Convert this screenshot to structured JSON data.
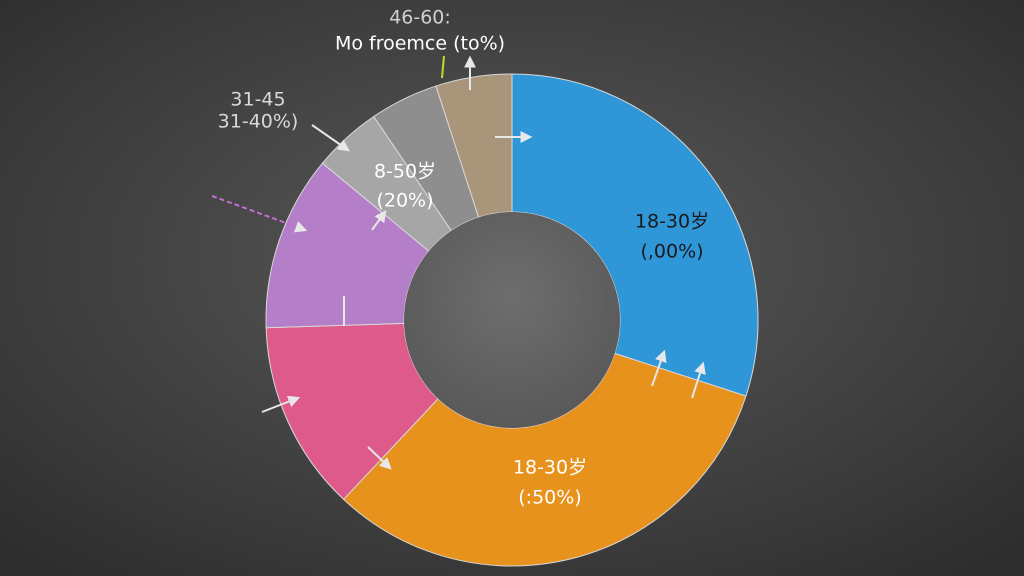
{
  "chart_data": {
    "type": "donut",
    "categories": [
      null,
      null,
      null,
      null,
      null,
      null,
      null
    ],
    "values": [
      30,
      32,
      12.5,
      11.5,
      4.5,
      4.5,
      5
    ],
    "colors": [
      "#2f96d8",
      "#e8921e",
      "#de5a8a",
      "#b47fc8",
      "#a6a6a6",
      "#8e8e8e",
      "#a8957a"
    ],
    "annotations": [
      "46-60:",
      "Mo froemce (to%)",
      "31-45",
      "31-40%)",
      "8-50岁",
      "(20%)",
      "18-30岁",
      "(,00%)",
      "18-30岁",
      "(:50%)"
    ]
  }
}
